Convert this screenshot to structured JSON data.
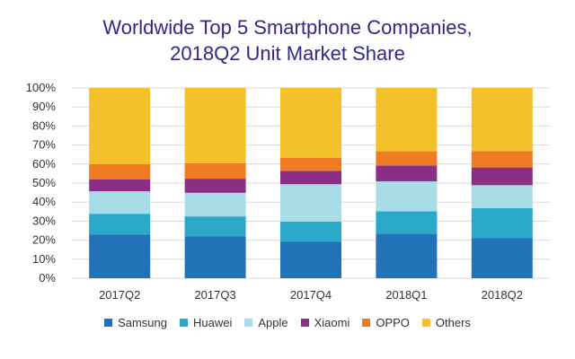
{
  "chart_data": {
    "type": "bar",
    "stacked": true,
    "title": "Worldwide Top 5 Smartphone Companies,",
    "subtitle": "2018Q2 Unit Market Share",
    "categories": [
      "2017Q2",
      "2017Q3",
      "2017Q4",
      "2018Q1",
      "2018Q2"
    ],
    "ylim": [
      0,
      100
    ],
    "y_ticks": [
      "0%",
      "10%",
      "20%",
      "30%",
      "40%",
      "50%",
      "60%",
      "70%",
      "80%",
      "90%",
      "100%"
    ],
    "grid": true,
    "legend_position": "bottom",
    "series": [
      {
        "name": "Samsung",
        "color": "#2272b8",
        "values": [
          22.9,
          22.1,
          19.1,
          23.4,
          21.0
        ]
      },
      {
        "name": "Huawei",
        "color": "#2aa9c8",
        "values": [
          11.0,
          10.4,
          10.7,
          11.8,
          15.8
        ]
      },
      {
        "name": "Apple",
        "color": "#a8dde8",
        "values": [
          11.8,
          12.4,
          19.6,
          15.7,
          12.1
        ]
      },
      {
        "name": "Xiaomi",
        "color": "#8a2f85",
        "values": [
          6.2,
          7.4,
          7.0,
          8.4,
          9.3
        ]
      },
      {
        "name": "OPPO",
        "color": "#f07b22",
        "values": [
          8.0,
          8.1,
          6.9,
          7.4,
          8.6
        ]
      },
      {
        "name": "Others",
        "color": "#f4c12a",
        "values": [
          40.1,
          39.6,
          36.7,
          33.3,
          33.2
        ]
      }
    ]
  }
}
